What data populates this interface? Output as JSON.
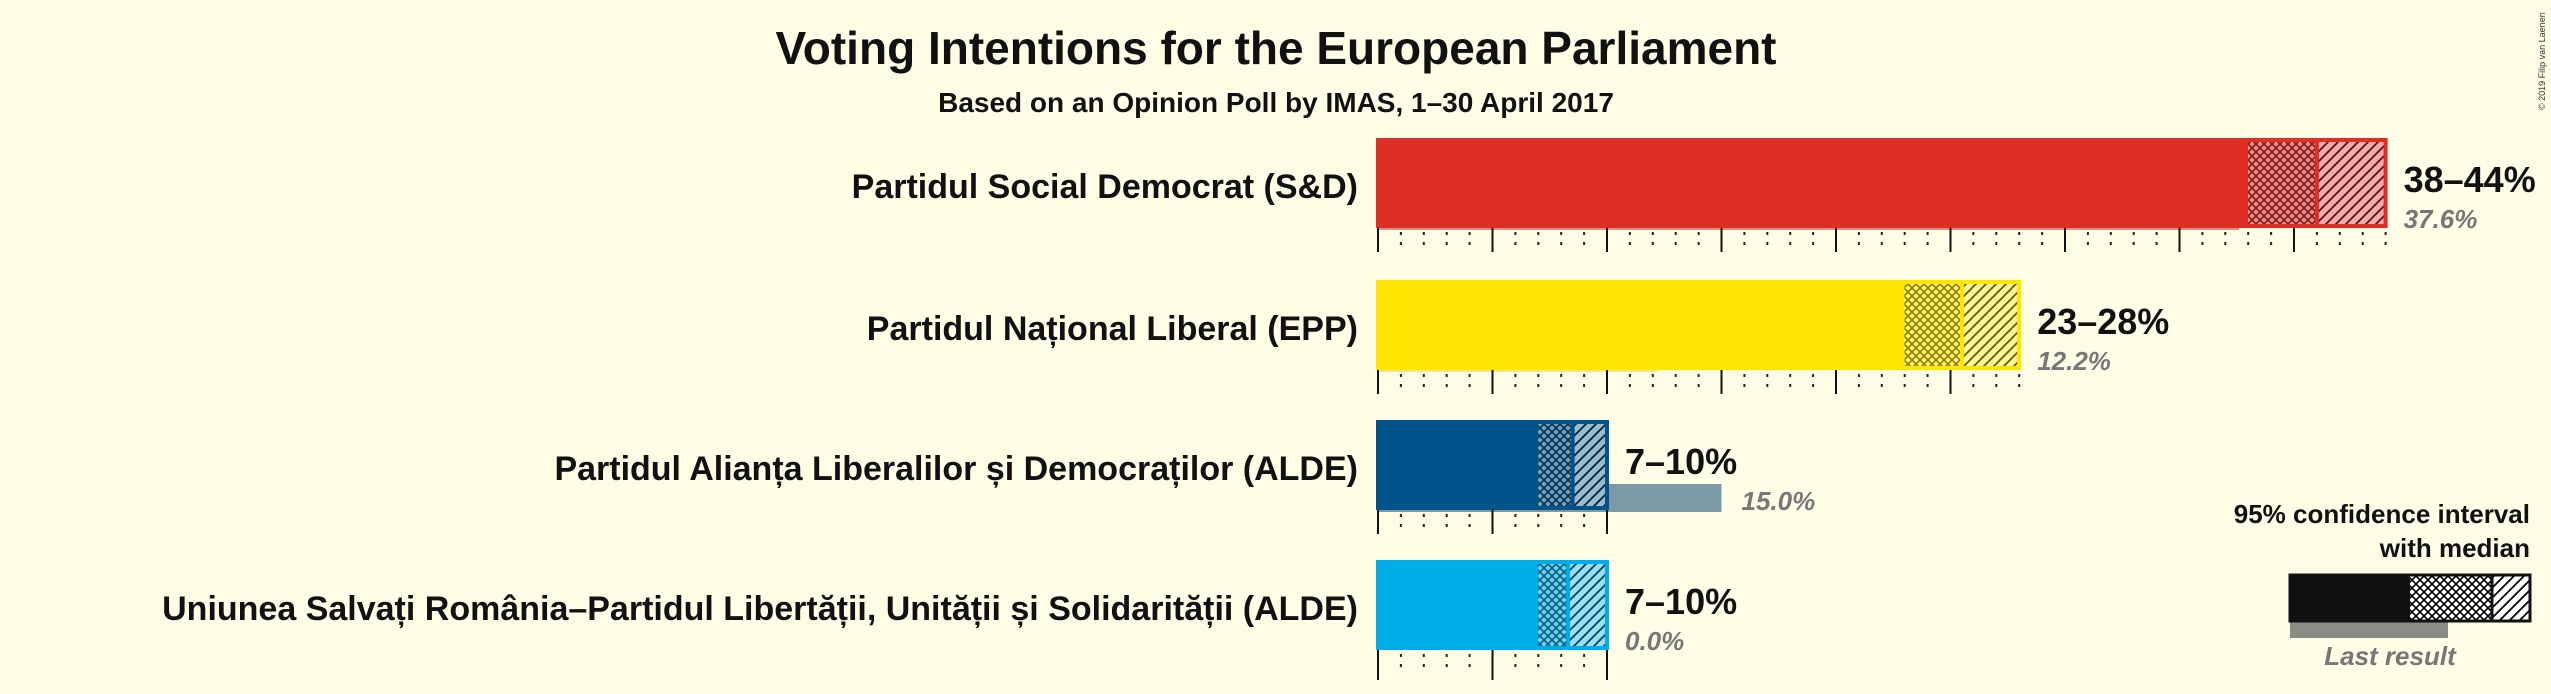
{
  "chart_data": {
    "type": "bar",
    "title": "Voting Intentions for the European Parliament",
    "subtitle": "Based on an Opinion Poll by IMAS, 1–30 April 2017",
    "copyright": "© 2019 Filip van Laenen",
    "categories": [
      "Partidul Social Democrat (S&D)",
      "Partidul Național Liberal (EPP)",
      "Partidul Alianța Liberalilor și Democraților (ALDE)",
      "Uniunea Salvați România–Partidul Libertății, Unității și Solidarității (ALDE)"
    ],
    "series": [
      {
        "name": "95% confidence interval",
        "low": [
          38,
          23,
          7,
          7
        ],
        "high": [
          44,
          28,
          10,
          10
        ],
        "median": [
          41,
          25.5,
          8.5,
          8.3
        ]
      },
      {
        "name": "Last result",
        "values": [
          37.6,
          12.2,
          15.0,
          0.0
        ]
      }
    ],
    "range_labels": [
      "38–44%",
      "23–28%",
      "7–10%",
      "7–10%"
    ],
    "last_labels": [
      "37.6%",
      "12.2%",
      "15.0%",
      "0.0%"
    ],
    "colors": [
      "#df2e26",
      "#ffe500",
      "#00548a",
      "#00ade6"
    ],
    "last_colors": [
      "#d9918b",
      "#f5e48a",
      "#7a9aa6",
      "#8fcde0"
    ],
    "xlim": [
      0,
      50
    ],
    "gridlines": true,
    "legend": {
      "position": "bottom-right",
      "line1": "95% confidence interval",
      "line2": "with median",
      "last_result": "Last result"
    }
  }
}
